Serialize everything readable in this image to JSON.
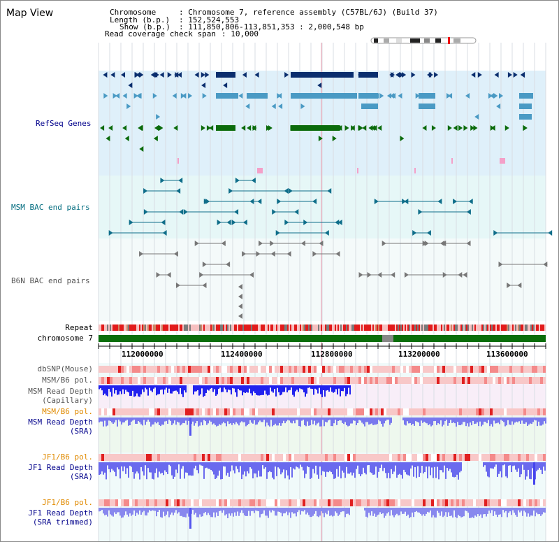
{
  "view_title": "Map View",
  "info": {
    "chromosome_key": "Chromosome",
    "chromosome_val": ": Chromosome 7, reference assembly (C57BL/6J) (Build 37)",
    "length_key": "Length (b.p.)",
    "length_val": ": 152,524,553",
    "show_key": "Show (b.p.)",
    "show_val": ": 111,850,806-113,851,353 : 2,000,548 bp",
    "coverage_key": "Read coverage check span",
    "coverage_val": ": 10,000"
  },
  "tracks": {
    "refseq": "RefSeq Genes",
    "msm_bac": "MSM BAC end pairs",
    "b6n_bac": "B6N BAC end pairs",
    "repeat": "Repeat",
    "chrom": "chromosome 7",
    "dbsnp": "dbSNP(Mouse)",
    "msm_b6_pol_1": "MSM/B6 pol.",
    "msm_depth_cap_1": "MSM Read Depth",
    "msm_depth_cap_2": "(Capillary)",
    "msm_b6_pol_2": "MSM/B6 pol.",
    "msm_depth_sra_1": "MSM Read Depth",
    "msm_depth_sra_2": "(SRA)",
    "jf1_b6_pol_1": "JF1/B6 pol.",
    "jf1_depth_sra_1": "JF1 Read Depth",
    "jf1_depth_sra_2": "(SRA)",
    "jf1_b6_pol_2": "JF1/B6 pol.",
    "jf1_depth_trim_1": "JF1 Read Depth",
    "jf1_depth_trim_2": "(SRA trimmed)"
  },
  "ruler": {
    "ticks": [
      "112000000",
      "112400000",
      "112800000",
      "113200000",
      "113600000"
    ]
  },
  "colors": {
    "refseq_bg": "#dff0fa",
    "msm_bg": "#e6f7f7",
    "b6n_bg": "#f4fafa",
    "gene_dark": "#0a2e6e",
    "gene_mid": "#4a9ac4",
    "gene_green": "#0b6b0b",
    "bac_teal": "#0f6e8a",
    "bac_gray": "#777777",
    "label_blue": "#00008b",
    "label_teal": "#006b7e",
    "label_gray": "#555555",
    "label_orange": "#e08a00",
    "chrom_green": "#0a6e0a"
  }
}
